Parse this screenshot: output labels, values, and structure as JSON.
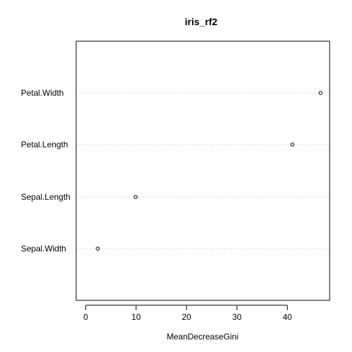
{
  "chart_data": {
    "type": "scatter",
    "title": "iris_rf2",
    "xlabel": "MeanDecreaseGini",
    "ylabel": "",
    "xlim": [
      -1.9,
      48.4
    ],
    "xticks": [
      0,
      10,
      20,
      30,
      40
    ],
    "grid": "dotted horizontal guide line per category",
    "legend": "none",
    "categories": [
      "Petal.Width",
      "Petal.Length",
      "Sepal.Length",
      "Sepal.Width"
    ],
    "values": [
      46.6,
      41.0,
      9.9,
      2.4
    ],
    "point_style": "open circle",
    "colors": {
      "points": "#000000",
      "axes": "#000000",
      "gridlines": "#bebebe"
    }
  }
}
